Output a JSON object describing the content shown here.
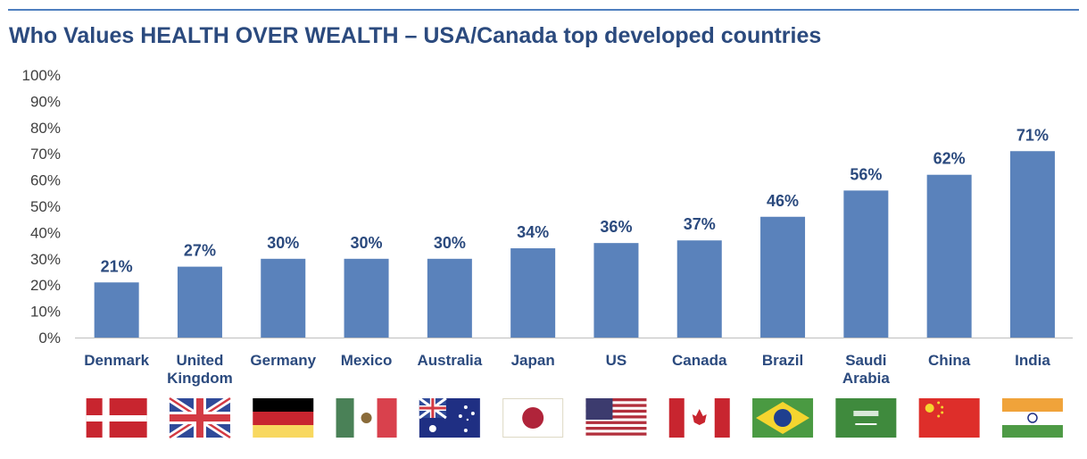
{
  "chart_data": {
    "type": "bar",
    "title": "Who Values HEALTH OVER WEALTH – USA/Canada top developed countries",
    "categories": [
      "Denmark",
      "United Kingdom",
      "Germany",
      "Mexico",
      "Australia",
      "Japan",
      "US",
      "Canada",
      "Brazil",
      "Saudi Arabia",
      "China",
      "India"
    ],
    "category_lines": [
      [
        "Denmark"
      ],
      [
        "United",
        "Kingdom"
      ],
      [
        "Germany"
      ],
      [
        "Mexico"
      ],
      [
        "Australia"
      ],
      [
        "Japan"
      ],
      [
        "US"
      ],
      [
        "Canada"
      ],
      [
        "Brazil"
      ],
      [
        "Saudi",
        "Arabia"
      ],
      [
        "China"
      ],
      [
        "India"
      ]
    ],
    "values": [
      21,
      27,
      30,
      30,
      30,
      34,
      36,
      37,
      46,
      56,
      62,
      71
    ],
    "data_labels": [
      "21%",
      "27%",
      "30%",
      "30%",
      "30%",
      "34%",
      "36%",
      "37%",
      "46%",
      "56%",
      "62%",
      "71%"
    ],
    "ylim": [
      0,
      100
    ],
    "yticks": [
      "0%",
      "10%",
      "20%",
      "30%",
      "40%",
      "50%",
      "60%",
      "70%",
      "80%",
      "90%",
      "100%"
    ],
    "grid": false,
    "bar_color": "#5a82bb",
    "flag_icons": [
      "denmark-flag-icon",
      "uk-flag-icon",
      "germany-flag-icon",
      "mexico-flag-icon",
      "australia-flag-icon",
      "japan-flag-icon",
      "usa-flag-icon",
      "canada-flag-icon",
      "brazil-flag-icon",
      "saudi-arabia-flag-icon",
      "china-flag-icon",
      "india-flag-icon"
    ]
  }
}
